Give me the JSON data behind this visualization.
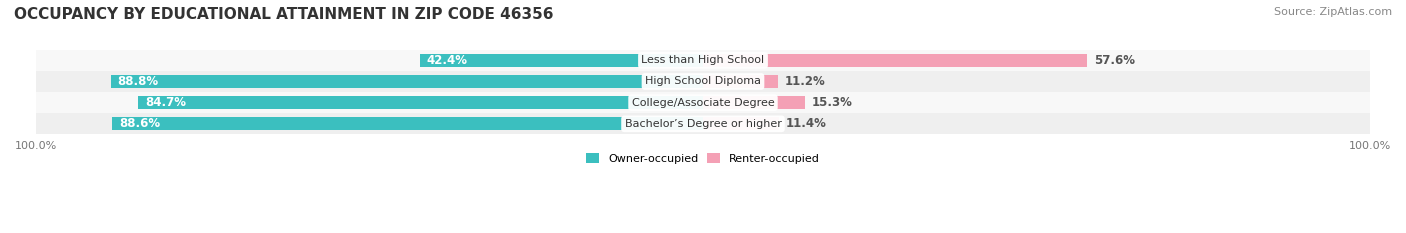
{
  "title": "OCCUPANCY BY EDUCATIONAL ATTAINMENT IN ZIP CODE 46356",
  "source": "Source: ZipAtlas.com",
  "categories": [
    "Less than High School",
    "High School Diploma",
    "College/Associate Degree",
    "Bachelor’s Degree or higher"
  ],
  "owner_pct": [
    42.4,
    88.8,
    84.7,
    88.6
  ],
  "renter_pct": [
    57.6,
    11.2,
    15.3,
    11.4
  ],
  "owner_color": "#3BBFBF",
  "renter_color": "#F4A0B5",
  "row_bg_colors": [
    "#F8F8F8",
    "#EFEFEF"
  ],
  "owner_text_color": "#FFFFFF",
  "renter_text_color": "#555555",
  "title_fontsize": 11,
  "source_fontsize": 8,
  "bar_label_fontsize": 8.5,
  "category_fontsize": 8,
  "axis_label_fontsize": 8,
  "legend_fontsize": 8,
  "axis_labels": [
    "100.0%",
    "100.0%"
  ]
}
